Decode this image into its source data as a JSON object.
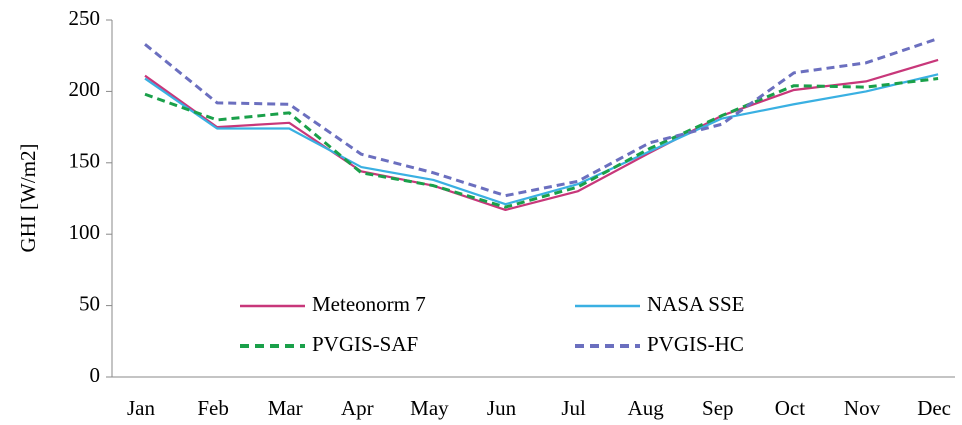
{
  "chart_data": {
    "type": "line",
    "y_label": "GHI [W/m2]",
    "categories": [
      "Jan",
      "Feb",
      "Mar",
      "Apr",
      "May",
      "Jun",
      "Jul",
      "Aug",
      "Sep",
      "Oct",
      "Nov",
      "Dec"
    ],
    "series": [
      {
        "name": "Meteonorm 7",
        "color": "#c8377a",
        "dashed": false,
        "values": [
          211,
          175,
          178,
          144,
          134,
          117,
          130,
          157,
          183,
          201,
          207,
          222
        ]
      },
      {
        "name": "NASA SSE",
        "color": "#3ab0e2",
        "dashed": false,
        "values": [
          209,
          174,
          174,
          147,
          138,
          121,
          135,
          158,
          181,
          191,
          200,
          212
        ]
      },
      {
        "name": "PVGIS-SAF",
        "color": "#1aa04a",
        "dashed": true,
        "values": [
          198,
          180,
          185,
          143,
          134,
          119,
          133,
          160,
          183,
          204,
          203,
          209
        ]
      },
      {
        "name": "PVGIS-HC",
        "color": "#6b6fbf",
        "dashed": true,
        "values": [
          233,
          192,
          191,
          156,
          143,
          127,
          137,
          164,
          177,
          213,
          220,
          237
        ]
      }
    ],
    "ylim": [
      0,
      250
    ],
    "yticks": [
      0,
      50,
      100,
      150,
      200,
      250
    ],
    "grid": false
  }
}
